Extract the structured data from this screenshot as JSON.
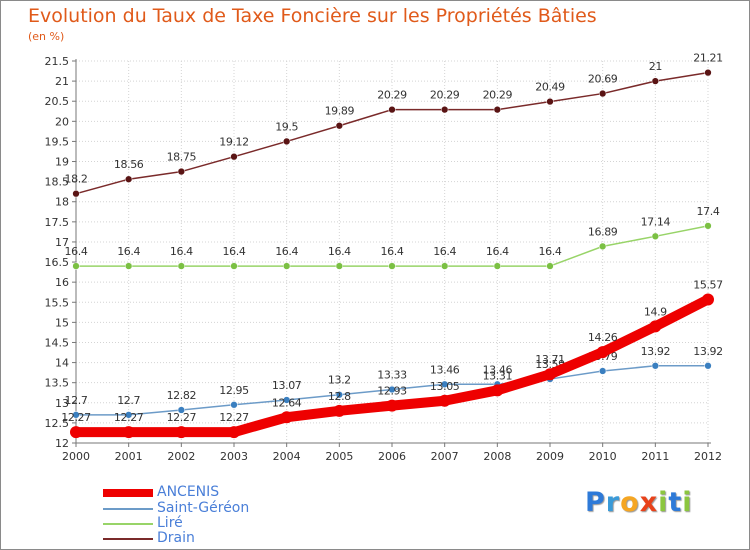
{
  "title": "Evolution du Taux de Taxe Foncière sur les Propriétés Bâties",
  "subtitle": "(en %)",
  "logo": {
    "letters": [
      "P",
      "r",
      "o",
      "x",
      "i",
      "t",
      "i"
    ],
    "colors": [
      "#2e7ad8",
      "#3a9ad8",
      "#f5a623",
      "#e8421a",
      "#8cc63f",
      "#2e7ad8",
      "#8cc63f"
    ]
  },
  "chart_data": {
    "type": "line",
    "title": "Evolution du Taux de Taxe Foncière sur les Propriétés Bâties",
    "ylabel": "(en %)",
    "xlabel": "",
    "x": [
      "2000",
      "2001",
      "2002",
      "2003",
      "2004",
      "2005",
      "2006",
      "2007",
      "2008",
      "2009",
      "2010",
      "2011",
      "2012"
    ],
    "ylim": [
      12,
      21.5
    ],
    "yticks": [
      "12",
      "12.5",
      "13",
      "13.5",
      "14",
      "14.5",
      "15",
      "15.5",
      "16",
      "16.5",
      "17",
      "17.5",
      "18",
      "18.5",
      "19",
      "19.5",
      "20",
      "20.5",
      "21",
      "21.5"
    ],
    "grid": true,
    "legend_position": "bottom-left",
    "series": [
      {
        "name": "Drain",
        "color": "#7a2a2a",
        "marker": "#5a1414",
        "values": [
          18.2,
          18.56,
          18.75,
          19.12,
          19.5,
          19.89,
          20.29,
          20.29,
          20.29,
          20.49,
          20.69,
          21,
          21.21
        ],
        "labels": [
          "18.2",
          "18.56",
          "18.75",
          "19.12",
          "19.5",
          "19.89",
          "20.29",
          "20.29",
          "20.29",
          "20.49",
          "20.69",
          "21",
          "21.21"
        ]
      },
      {
        "name": "Liré",
        "color": "#98d468",
        "marker": "#7bc043",
        "values": [
          16.4,
          16.4,
          16.4,
          16.4,
          16.4,
          16.4,
          16.4,
          16.4,
          16.4,
          16.4,
          16.89,
          17.14,
          17.4
        ],
        "labels": [
          "16.4",
          "16.4",
          "16.4",
          "16.4",
          "16.4",
          "16.4",
          "16.4",
          "16.4",
          "16.4",
          "16.4",
          "16.89",
          "17.14",
          "17.4"
        ]
      },
      {
        "name": "Saint-Géréon",
        "color": "#6c9bc8",
        "marker": "#3a7fc0",
        "values": [
          12.7,
          12.7,
          12.82,
          12.95,
          13.07,
          13.2,
          13.33,
          13.46,
          13.46,
          13.59,
          13.79,
          13.92,
          13.92
        ],
        "labels": [
          "12.7",
          "12.7",
          "12.82",
          "12.95",
          "13.07",
          "13.2",
          "13.33",
          "13.46",
          "13.46",
          "13.59",
          "13.79",
          "13.92",
          "13.92"
        ]
      },
      {
        "name": "ANCENIS",
        "color": "#ee0000",
        "marker": "#ee0000",
        "values": [
          12.27,
          12.27,
          12.27,
          12.27,
          12.64,
          12.8,
          12.93,
          13.05,
          13.31,
          13.71,
          14.26,
          14.9,
          15.57
        ],
        "labels": [
          "12.27",
          "12.27",
          "12.27",
          "12.27",
          "12.64",
          "12.8",
          "12.93",
          "13.05",
          "13.31",
          "13.71",
          "14.26",
          "14.9",
          "15.57"
        ]
      }
    ]
  },
  "legend": [
    {
      "name": "ANCENIS",
      "color": "#ee0000",
      "weight": "thick"
    },
    {
      "name": "Saint-Géréon",
      "color": "#6c9bc8",
      "weight": "thin"
    },
    {
      "name": "Liré",
      "color": "#98d468",
      "weight": "thin"
    },
    {
      "name": "Drain",
      "color": "#7a2a2a",
      "weight": "thin"
    }
  ]
}
